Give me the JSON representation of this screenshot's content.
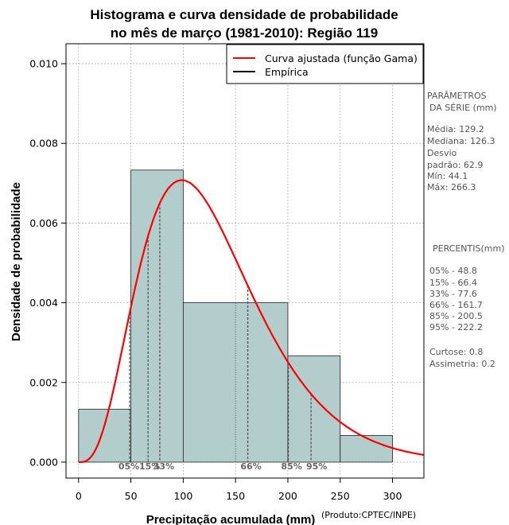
{
  "chart_data": {
    "type": "bar",
    "title_line1": "Histograma e curva densidade de probabilidade",
    "title_line2": "no mês de março (1981-2010): Região 119",
    "xlabel": "Precipitação acumulada (mm)",
    "ylabel": "Densidade de probabilidade",
    "credit": "(Produto:CPTEC/INPE)",
    "xlim": [
      -12,
      330
    ],
    "ylim": [
      -0.0004,
      0.0105
    ],
    "x_ticks": [
      0,
      50,
      100,
      150,
      200,
      250,
      300
    ],
    "x_tick_labels": [
      "0",
      "50",
      "100",
      "150",
      "200",
      "250",
      "300"
    ],
    "y_ticks": [
      0,
      0.002,
      0.004,
      0.006,
      0.008,
      0.01
    ],
    "y_tick_labels": [
      "0.000",
      "0.002",
      "0.004",
      "0.006",
      "0.008",
      "0.010"
    ],
    "grid": true,
    "bins": [
      {
        "from": 0,
        "to": 50,
        "density": 0.00133
      },
      {
        "from": 50,
        "to": 100,
        "density": 0.00733
      },
      {
        "from": 100,
        "to": 200,
        "density": 0.004
      },
      {
        "from": 200,
        "to": 250,
        "density": 0.00267
      },
      {
        "from": 250,
        "to": 300,
        "density": 0.00067
      }
    ],
    "fitted_curve": {
      "name": "Curva ajustada (função Gama)",
      "color": "#ff0000",
      "mean": 129.2,
      "sd": 62.9
    },
    "empirical": {
      "name": "Empírica",
      "color": "#000000"
    },
    "bar_fill": "#b3cccc",
    "percentile_markers": [
      {
        "label": "05%",
        "x": 48.8
      },
      {
        "label": "15%",
        "x": 66.4
      },
      {
        "label": "33%",
        "x": 77.6
      },
      {
        "label": "66%",
        "x": 161.7
      },
      {
        "label": "85%",
        "x": 200.5
      },
      {
        "label": "95%",
        "x": 222.2
      }
    ],
    "legend_position": "top-right"
  },
  "side_panel": {
    "params_title_1": "PARÂMETROS",
    "params_title_2": "DA SÉRIE (mm)",
    "params": [
      "Média:  129.2",
      "Mediana:  126.3",
      "Desvio",
      "padrão:  62.9",
      "Mín:  44.1",
      "Máx:  266.3"
    ],
    "percentis_title": "PERCENTIS(mm)",
    "percentis": [
      "05% -  48.8",
      "15% -  66.4",
      "33% -  77.6",
      "66% -  161.7",
      "85% -  200.5",
      "95% -  222.2"
    ],
    "stats": [
      "Curtose:  0.8",
      "Assimetria:  0.2"
    ]
  }
}
